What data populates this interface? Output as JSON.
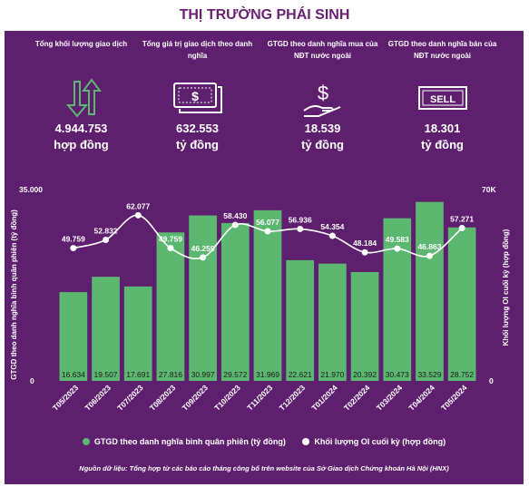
{
  "title": "THỊ TRƯỜNG PHÁI SINH",
  "kpis": [
    {
      "label": "Tổng khối lượng giao dịch",
      "value": "4.944.753",
      "unit": "hợp đồng",
      "icon": "up-down-arrows-icon"
    },
    {
      "label": "Tổng giá trị giao dịch theo danh nghĩa",
      "value": "632.553",
      "unit": "tỷ đồng",
      "icon": "money-stack-icon"
    },
    {
      "label": "GTGD theo danh nghĩa mua của NĐT nước ngoài",
      "value": "18.539",
      "unit": "tỷ đồng",
      "icon": "dollar-hand-icon"
    },
    {
      "label": "GTGD theo danh nghĩa bán của NĐT nước ngoài",
      "value": "18.301",
      "unit": "tỷ đồng",
      "icon": "sell-sign-icon"
    }
  ],
  "legend": {
    "bars": "GTGD theo danh nghĩa bình quân phiên (tỷ đồng)",
    "line": "Khối lượng OI cuối kỳ (hợp đồng)"
  },
  "source": "Nguồn dữ liệu: Tổng hợp từ các báo cáo tháng công bố trên website của Sở Giao dịch Chứng khoán Hà Nội (HNX)",
  "colors": {
    "panel": "#5e1f6e",
    "bar": "#5cb870",
    "title": "#6b1f73",
    "line": "#ffffff"
  },
  "chart_data": {
    "type": "bar",
    "categories": [
      "T05/2023",
      "T06/2023",
      "T07/2023",
      "T08/2023",
      "T09/2023",
      "T10/2023",
      "T11/2023",
      "T12/2023",
      "T01/2024",
      "T02/2024",
      "T03/2024",
      "T04/2024",
      "T05/2024"
    ],
    "series": [
      {
        "name": "GTGD theo danh nghĩa bình quân phiên (tỷ đồng)",
        "type": "bar",
        "axis": "left",
        "values": [
          16634,
          19507,
          17691,
          27816,
          30997,
          29572,
          31969,
          22621,
          21970,
          20392,
          30473,
          33529,
          28752
        ],
        "labels": [
          "16.634",
          "19.507",
          "17.691",
          "27.816",
          "30.997",
          "29.572",
          "31.969",
          "22.621",
          "21.970",
          "20.392",
          "30.473",
          "33.529",
          "28.752"
        ]
      },
      {
        "name": "Khối lượng OI cuối kỳ (hợp đồng)",
        "type": "line",
        "axis": "right",
        "values": [
          49759,
          52832,
          62077,
          49759,
          46259,
          58430,
          56077,
          56936,
          54354,
          48184,
          49583,
          46863,
          57271
        ],
        "labels": [
          "49.759",
          "52.832",
          "62.077",
          "49.759",
          "46.259",
          "58.430",
          "56.077",
          "56.936",
          "54.354",
          "48.184",
          "49.583",
          "46.863",
          "57.271"
        ]
      }
    ],
    "ylabel": "GTGD theo danh nghĩa bình quân phiên (tỷ đồng)",
    "y2label": "Khối lượng OI cuối kỳ (hợp đồng)",
    "ylim": [
      0,
      35000
    ],
    "y2lim": [
      0,
      70000
    ],
    "yticks": [
      "0",
      "35.000"
    ],
    "y2ticks": [
      "0",
      "70K"
    ],
    "grid": false,
    "legend_position": "bottom"
  }
}
